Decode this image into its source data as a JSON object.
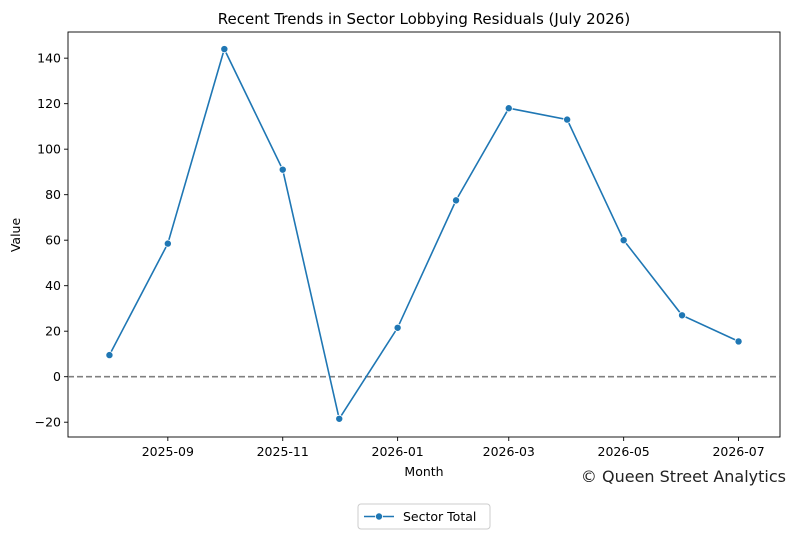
{
  "chart_data": {
    "type": "line",
    "title": "Recent Trends in Sector Lobbying Residuals (July 2026)",
    "xlabel": "Month",
    "ylabel": "Value",
    "x": [
      "2025-08-01",
      "2025-09-01",
      "2025-10-01",
      "2025-11-01",
      "2025-12-01",
      "2026-01-01",
      "2026-02-01",
      "2026-03-01",
      "2026-04-01",
      "2026-05-01",
      "2026-06-01",
      "2026-07-01"
    ],
    "series": [
      {
        "name": "Sector Total",
        "color": "#1f77b4",
        "marker": "circle",
        "values": [
          9.5,
          58.5,
          144,
          91,
          -18.5,
          21.5,
          77.5,
          118,
          113,
          60,
          27,
          15.5
        ]
      }
    ],
    "xticks": [
      {
        "date": "2025-09-01",
        "label": "2025-09"
      },
      {
        "date": "2025-11-01",
        "label": "2025-11"
      },
      {
        "date": "2026-01-01",
        "label": "2026-01"
      },
      {
        "date": "2026-03-01",
        "label": "2026-03"
      },
      {
        "date": "2026-05-01",
        "label": "2026-05"
      },
      {
        "date": "2026-07-01",
        "label": "2026-07"
      }
    ],
    "xlim": [
      "2025-07-10",
      "2026-07-23"
    ],
    "yticks": [
      -20,
      0,
      20,
      40,
      60,
      80,
      100,
      120,
      140
    ],
    "ylim": [
      -26.5,
      151.5
    ],
    "reference_line": {
      "y": 0,
      "style": "dashed",
      "color": "#808080"
    },
    "grid": false,
    "legend": {
      "position": "bottom-center"
    },
    "watermark": "© Queen Street Analytics"
  }
}
